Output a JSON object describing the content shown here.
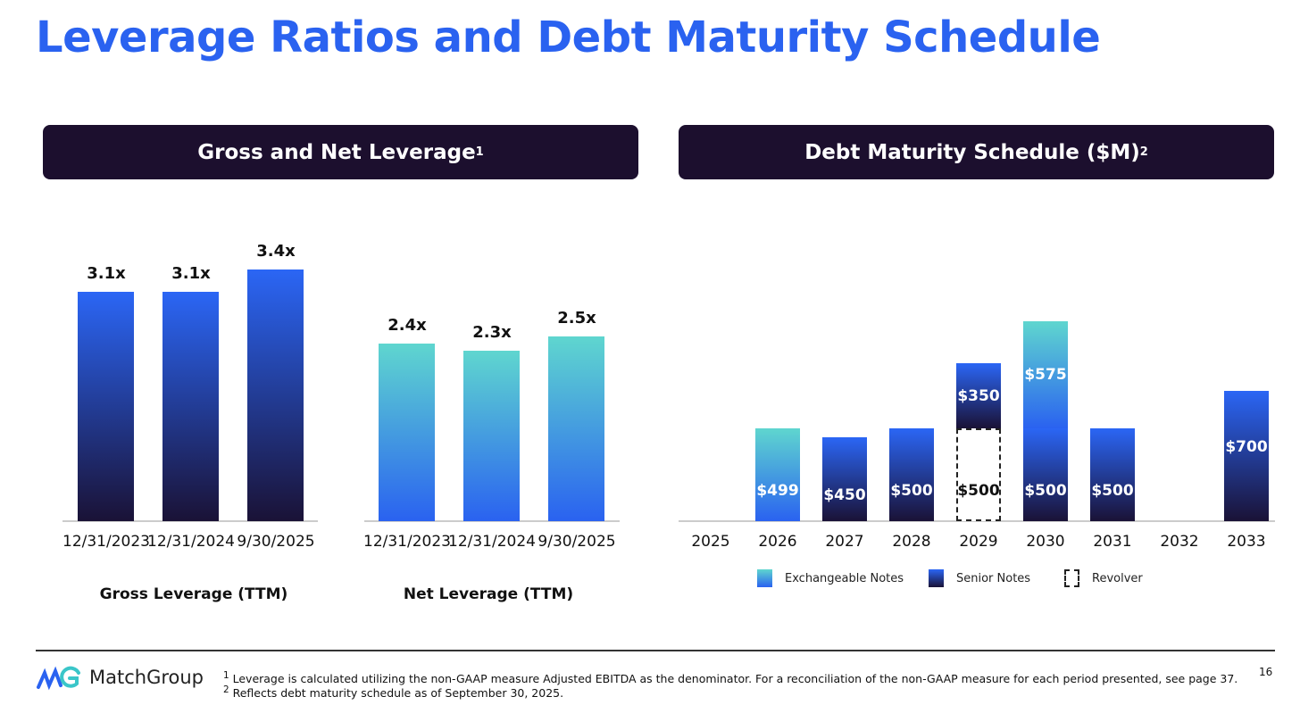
{
  "title": "Leverage Ratios and Debt Maturity Schedule",
  "panels": {
    "left_title": "Gross and Net Leverage",
    "left_sup": "1",
    "right_title": "Debt Maturity Schedule ($M)",
    "right_sup": "2"
  },
  "chart_data": [
    {
      "type": "bar",
      "title": "Gross Leverage (TTM)",
      "categories": [
        "12/31/2023",
        "12/31/2024",
        "9/30/2025"
      ],
      "values": [
        3.1,
        3.1,
        3.4
      ],
      "labels": [
        "3.1x",
        "3.1x",
        "3.4x"
      ],
      "ylim": [
        0,
        3.4
      ]
    },
    {
      "type": "bar",
      "title": "Net Leverage (TTM)",
      "categories": [
        "12/31/2023",
        "12/31/2024",
        "9/30/2025"
      ],
      "values": [
        2.4,
        2.3,
        2.5
      ],
      "labels": [
        "2.4x",
        "2.3x",
        "2.5x"
      ],
      "ylim": [
        0,
        3.4
      ]
    },
    {
      "type": "bar",
      "stacked": true,
      "title": "Debt Maturity Schedule ($M)",
      "categories": [
        "2025",
        "2026",
        "2027",
        "2028",
        "2029",
        "2030",
        "2031",
        "2032",
        "2033"
      ],
      "stacks": [
        [],
        [
          {
            "series": "exch",
            "value": 499,
            "label": "$499"
          }
        ],
        [
          {
            "series": "senior",
            "value": 450,
            "label": "$450"
          }
        ],
        [
          {
            "series": "senior",
            "value": 500,
            "label": "$500"
          }
        ],
        [
          {
            "series": "revolver",
            "value": 500,
            "label": "$500"
          },
          {
            "series": "senior",
            "value": 350,
            "label": "$350"
          }
        ],
        [
          {
            "series": "senior",
            "value": 500,
            "label": "$500"
          },
          {
            "series": "exch",
            "value": 575,
            "label": "$575"
          }
        ],
        [
          {
            "series": "senior",
            "value": 500,
            "label": "$500"
          }
        ],
        [],
        [
          {
            "series": "senior",
            "value": 700,
            "label": "$700"
          }
        ]
      ],
      "legend": [
        {
          "key": "exch",
          "name": "Exchangeable Notes"
        },
        {
          "key": "senior",
          "name": "Senior Notes"
        },
        {
          "key": "revolver",
          "name": "Revolver"
        }
      ],
      "legend_position": "bottom"
    }
  ],
  "footer": {
    "logo": "MatchGroup",
    "note1_mark": "1",
    "note1": "Leverage is calculated utilizing the non-GAAP measure Adjusted EBITDA as the denominator. For a reconciliation of the non-GAAP measure for each period presented, see page 37.",
    "note2_mark": "2",
    "note2": "Reflects debt maturity schedule as of September 30, 2025.",
    "page": "16"
  }
}
